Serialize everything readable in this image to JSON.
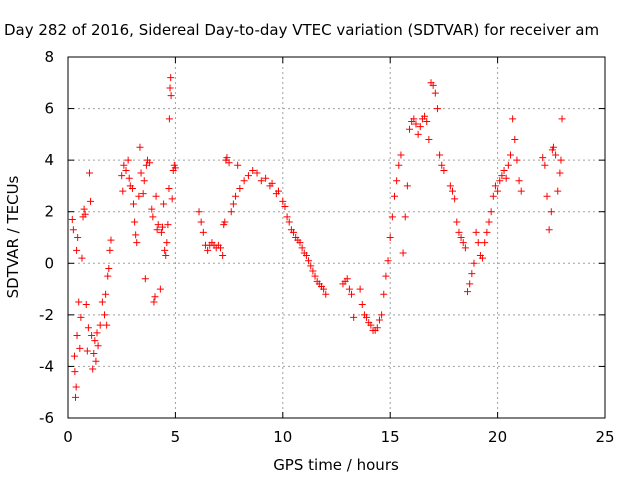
{
  "chart_data": {
    "type": "scatter",
    "title": "Day 282 of 2016, Sidereal Day-to-day VTEC variation (SDTVAR) for receiver am",
    "xlabel": "GPS time / hours",
    "ylabel": "SDTVAR / TECUs",
    "xlim": [
      0,
      25
    ],
    "ylim": [
      -6,
      8
    ],
    "xticks": [
      0,
      5,
      10,
      15,
      20,
      25
    ],
    "yticks": [
      -6,
      -4,
      -2,
      0,
      2,
      4,
      6,
      8
    ],
    "grid": true,
    "legend": "none",
    "marker": "+",
    "color": "#ff0000",
    "series": [
      {
        "values": [
          [
            0.2,
            1.7
          ],
          [
            0.25,
            1.3
          ],
          [
            0.3,
            -3.6
          ],
          [
            0.32,
            -4.2
          ],
          [
            0.35,
            -5.2
          ],
          [
            0.38,
            -4.8
          ],
          [
            0.4,
            0.5
          ],
          [
            0.42,
            -2.8
          ],
          [
            0.45,
            1.0
          ],
          [
            0.5,
            -1.5
          ],
          [
            0.55,
            -3.3
          ],
          [
            0.6,
            -2.1
          ],
          [
            0.65,
            0.2
          ],
          [
            0.7,
            1.8
          ],
          [
            0.75,
            2.1
          ],
          [
            0.8,
            1.9
          ],
          [
            0.85,
            -1.6
          ],
          [
            0.9,
            -3.4
          ],
          [
            0.95,
            -2.5
          ],
          [
            1.0,
            3.5
          ],
          [
            1.05,
            2.4
          ],
          [
            1.1,
            -2.8
          ],
          [
            1.15,
            -4.1
          ],
          [
            1.2,
            -3.5
          ],
          [
            1.25,
            -3.0
          ],
          [
            1.3,
            -3.8
          ],
          [
            1.35,
            -2.7
          ],
          [
            1.4,
            -3.2
          ],
          [
            1.5,
            -2.4
          ],
          [
            1.6,
            -1.5
          ],
          [
            1.7,
            -2.0
          ],
          [
            1.75,
            -1.2
          ],
          [
            1.8,
            -2.4
          ],
          [
            1.85,
            -0.5
          ],
          [
            1.9,
            -0.2
          ],
          [
            1.95,
            0.5
          ],
          [
            2.0,
            0.9
          ],
          [
            2.5,
            3.4
          ],
          [
            2.55,
            2.8
          ],
          [
            2.6,
            3.8
          ],
          [
            2.7,
            3.6
          ],
          [
            2.8,
            4.0
          ],
          [
            2.85,
            3.3
          ],
          [
            2.9,
            3.0
          ],
          [
            3.0,
            2.9
          ],
          [
            3.05,
            2.3
          ],
          [
            3.1,
            1.6
          ],
          [
            3.15,
            1.1
          ],
          [
            3.2,
            0.8
          ],
          [
            3.3,
            2.6
          ],
          [
            3.35,
            4.5
          ],
          [
            3.4,
            3.5
          ],
          [
            3.5,
            2.7
          ],
          [
            3.55,
            3.2
          ],
          [
            3.6,
            -0.6
          ],
          [
            3.65,
            3.8
          ],
          [
            3.7,
            4.0
          ],
          [
            3.8,
            3.9
          ],
          [
            3.9,
            2.1
          ],
          [
            3.95,
            1.8
          ],
          [
            4.0,
            -1.5
          ],
          [
            4.05,
            -1.3
          ],
          [
            4.1,
            2.6
          ],
          [
            4.15,
            1.3
          ],
          [
            4.2,
            1.5
          ],
          [
            4.3,
            -1.0
          ],
          [
            4.35,
            1.2
          ],
          [
            4.4,
            1.4
          ],
          [
            4.45,
            2.3
          ],
          [
            4.5,
            0.5
          ],
          [
            4.55,
            0.3
          ],
          [
            4.6,
            0.8
          ],
          [
            4.65,
            1.5
          ],
          [
            4.7,
            2.9
          ],
          [
            4.72,
            5.6
          ],
          [
            4.75,
            6.8
          ],
          [
            4.78,
            7.2
          ],
          [
            4.8,
            6.5
          ],
          [
            4.85,
            2.5
          ],
          [
            4.9,
            3.6
          ],
          [
            4.95,
            3.8
          ],
          [
            5.0,
            3.7
          ],
          [
            6.1,
            2.0
          ],
          [
            6.2,
            1.6
          ],
          [
            6.3,
            1.2
          ],
          [
            6.4,
            0.7
          ],
          [
            6.5,
            0.5
          ],
          [
            6.6,
            0.7
          ],
          [
            6.7,
            0.8
          ],
          [
            6.8,
            0.7
          ],
          [
            6.9,
            0.6
          ],
          [
            7.0,
            0.7
          ],
          [
            7.1,
            0.6
          ],
          [
            7.2,
            0.3
          ],
          [
            7.25,
            1.5
          ],
          [
            7.3,
            1.6
          ],
          [
            7.35,
            4.0
          ],
          [
            7.4,
            4.1
          ],
          [
            7.5,
            3.9
          ],
          [
            7.6,
            2.0
          ],
          [
            7.7,
            2.3
          ],
          [
            7.8,
            2.6
          ],
          [
            7.9,
            3.8
          ],
          [
            8.0,
            2.9
          ],
          [
            8.2,
            3.2
          ],
          [
            8.4,
            3.4
          ],
          [
            8.6,
            3.6
          ],
          [
            8.8,
            3.5
          ],
          [
            9.0,
            3.2
          ],
          [
            9.2,
            3.3
          ],
          [
            9.4,
            3.0
          ],
          [
            9.5,
            3.1
          ],
          [
            9.7,
            2.7
          ],
          [
            9.8,
            2.8
          ],
          [
            10.0,
            2.4
          ],
          [
            10.1,
            2.2
          ],
          [
            10.2,
            1.8
          ],
          [
            10.3,
            1.6
          ],
          [
            10.4,
            1.3
          ],
          [
            10.5,
            1.2
          ],
          [
            10.6,
            1.0
          ],
          [
            10.7,
            0.9
          ],
          [
            10.8,
            0.8
          ],
          [
            10.9,
            0.6
          ],
          [
            11.0,
            0.4
          ],
          [
            11.1,
            0.3
          ],
          [
            11.2,
            0.1
          ],
          [
            11.3,
            -0.1
          ],
          [
            11.4,
            -0.3
          ],
          [
            11.5,
            -0.5
          ],
          [
            11.6,
            -0.7
          ],
          [
            11.7,
            -0.8
          ],
          [
            11.8,
            -0.9
          ],
          [
            11.9,
            -1.0
          ],
          [
            12.0,
            -1.2
          ],
          [
            12.8,
            -0.8
          ],
          [
            12.9,
            -0.7
          ],
          [
            13.0,
            -0.6
          ],
          [
            13.1,
            -1.0
          ],
          [
            13.2,
            -1.2
          ],
          [
            13.3,
            -2.1
          ],
          [
            13.6,
            -1.0
          ],
          [
            13.7,
            -1.6
          ],
          [
            13.8,
            -2.0
          ],
          [
            13.9,
            -2.1
          ],
          [
            14.0,
            -2.3
          ],
          [
            14.1,
            -2.4
          ],
          [
            14.2,
            -2.6
          ],
          [
            14.3,
            -2.6
          ],
          [
            14.4,
            -2.5
          ],
          [
            14.5,
            -2.2
          ],
          [
            14.6,
            -2.0
          ],
          [
            14.7,
            -1.2
          ],
          [
            14.8,
            -0.5
          ],
          [
            14.9,
            0.1
          ],
          [
            15.0,
            1.0
          ],
          [
            15.1,
            1.8
          ],
          [
            15.2,
            2.6
          ],
          [
            15.3,
            3.2
          ],
          [
            15.4,
            3.8
          ],
          [
            15.5,
            4.2
          ],
          [
            15.6,
            0.4
          ],
          [
            15.7,
            1.8
          ],
          [
            15.8,
            3.0
          ],
          [
            15.9,
            5.2
          ],
          [
            16.0,
            5.5
          ],
          [
            16.1,
            5.6
          ],
          [
            16.2,
            5.4
          ],
          [
            16.3,
            5.0
          ],
          [
            16.4,
            5.3
          ],
          [
            16.5,
            5.6
          ],
          [
            16.6,
            5.7
          ],
          [
            16.7,
            5.5
          ],
          [
            16.8,
            4.8
          ],
          [
            16.9,
            7.0
          ],
          [
            17.0,
            6.9
          ],
          [
            17.1,
            6.6
          ],
          [
            17.2,
            6.0
          ],
          [
            17.3,
            4.2
          ],
          [
            17.4,
            3.8
          ],
          [
            17.5,
            3.6
          ],
          [
            17.8,
            3.0
          ],
          [
            17.9,
            2.8
          ],
          [
            18.0,
            2.5
          ],
          [
            18.1,
            1.6
          ],
          [
            18.2,
            1.2
          ],
          [
            18.3,
            1.0
          ],
          [
            18.4,
            0.8
          ],
          [
            18.5,
            0.6
          ],
          [
            18.6,
            -1.1
          ],
          [
            18.7,
            -0.8
          ],
          [
            18.8,
            -0.4
          ],
          [
            18.9,
            0.0
          ],
          [
            19.0,
            1.2
          ],
          [
            19.1,
            0.8
          ],
          [
            19.2,
            0.3
          ],
          [
            19.3,
            0.2
          ],
          [
            19.4,
            0.8
          ],
          [
            19.5,
            1.2
          ],
          [
            19.6,
            1.6
          ],
          [
            19.7,
            2.0
          ],
          [
            19.8,
            2.6
          ],
          [
            19.9,
            3.0
          ],
          [
            20.0,
            2.8
          ],
          [
            20.1,
            3.2
          ],
          [
            20.2,
            3.4
          ],
          [
            20.3,
            3.6
          ],
          [
            20.4,
            3.3
          ],
          [
            20.5,
            3.8
          ],
          [
            20.6,
            4.2
          ],
          [
            20.7,
            5.6
          ],
          [
            20.8,
            4.8
          ],
          [
            20.9,
            4.0
          ],
          [
            21.0,
            3.2
          ],
          [
            21.1,
            2.8
          ],
          [
            22.1,
            4.1
          ],
          [
            22.2,
            3.8
          ],
          [
            22.3,
            2.6
          ],
          [
            22.4,
            1.3
          ],
          [
            22.5,
            2.0
          ],
          [
            22.55,
            4.4
          ],
          [
            22.6,
            4.5
          ],
          [
            22.7,
            4.2
          ],
          [
            22.8,
            2.8
          ],
          [
            22.9,
            3.5
          ],
          [
            22.95,
            4.0
          ],
          [
            23.0,
            5.6
          ]
        ]
      }
    ]
  }
}
